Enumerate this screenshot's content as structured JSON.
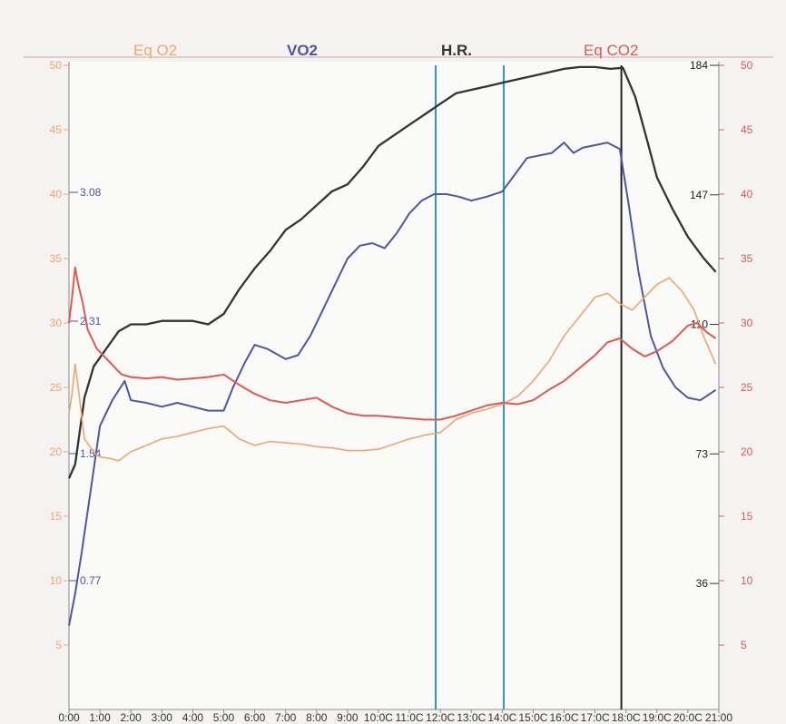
{
  "chart_data": {
    "type": "line",
    "legend": [
      "Eq O2",
      "VO2",
      "H.R.",
      "Eq CO2"
    ],
    "x_ticks": [
      "0:00",
      "1:00",
      "2:00",
      "3:00",
      "4:00",
      "5:00",
      "6:00",
      "7:00",
      "8:00",
      "9:00",
      "10:0C",
      "11:0C",
      "12:0C",
      "13:0C",
      "14:0C",
      "15:0C",
      "16:0C",
      "17:0C",
      "18:0C",
      "19:0C",
      "20:0C",
      "21:00"
    ],
    "x_range_minutes": [
      0,
      21
    ],
    "left_axis_eqo2": {
      "range": [
        0,
        50
      ],
      "ticks": [
        5,
        10,
        15,
        20,
        25,
        30,
        35,
        40,
        45,
        50
      ]
    },
    "left_axis_vo2": {
      "ticks": [
        0.77,
        1.54,
        2.31,
        3.08
      ]
    },
    "right_axis_hr": {
      "range": [
        0,
        184
      ],
      "ticks": [
        36,
        73,
        110,
        147,
        184
      ]
    },
    "right_axis_eqco2": {
      "range": [
        0,
        50
      ],
      "ticks": [
        5,
        10,
        15,
        20,
        25,
        30,
        35,
        40,
        45,
        50
      ]
    },
    "colors": {
      "eq_o2": "#f3a46e",
      "vo2": "#4c56a8",
      "hr": "#333333",
      "eq_co2": "#e2584e",
      "marker_blue": "#3a8fb5",
      "marker_black": "#222222",
      "axis_frame": "#c8a8a8"
    },
    "markers_minutes": [
      {
        "x": 11.85,
        "color": "blue"
      },
      {
        "x": 14.05,
        "color": "blue"
      },
      {
        "x": 17.85,
        "color": "black"
      }
    ],
    "series": [
      {
        "name": "H.R.",
        "axis": "right_hr",
        "x": [
          0,
          0.2,
          0.5,
          0.8,
          1.2,
          1.6,
          2,
          2.5,
          3,
          3.5,
          4,
          4.5,
          5,
          5.5,
          6,
          6.5,
          7,
          7.5,
          8,
          8.5,
          9,
          9.5,
          10,
          10.5,
          11,
          11.5,
          12,
          12.5,
          13,
          13.5,
          14,
          14.5,
          15,
          15.5,
          16,
          16.5,
          17,
          17.5,
          17.9,
          18.3,
          18.7,
          19,
          19.5,
          20,
          20.5,
          20.9
        ],
        "y": [
          66,
          70,
          89,
          98,
          103,
          108,
          110,
          110,
          111,
          111,
          111,
          110,
          113,
          120,
          126,
          131,
          137,
          140,
          144,
          148,
          150,
          155,
          161,
          164,
          167,
          170,
          173,
          176,
          177,
          178,
          179,
          180,
          181,
          182,
          183,
          183.5,
          183.5,
          183,
          183.3,
          175,
          162,
          152,
          143,
          135,
          129,
          125
        ]
      },
      {
        "name": "VO2",
        "axis": "left_eqo2_scale",
        "x": [
          0,
          0.2,
          0.4,
          0.7,
          1,
          1.4,
          1.8,
          2,
          2.5,
          3,
          3.5,
          4,
          4.5,
          5,
          5.3,
          5.7,
          6,
          6.4,
          7,
          7.4,
          7.8,
          8.2,
          8.6,
          9,
          9.4,
          9.8,
          10.2,
          10.6,
          11,
          11.4,
          11.8,
          12.2,
          12.6,
          13,
          13.5,
          14,
          14.4,
          14.8,
          15.2,
          15.6,
          16,
          16.3,
          16.6,
          17,
          17.4,
          17.8,
          18.1,
          18.4,
          18.8,
          19.2,
          19.6,
          20,
          20.4,
          20.9
        ],
        "y": [
          6.5,
          9,
          12,
          17,
          22,
          24,
          25.5,
          24,
          23.8,
          23.5,
          23.8,
          23.5,
          23.2,
          23.2,
          25,
          27,
          28.3,
          28,
          27.2,
          27.5,
          29,
          31,
          33,
          35,
          36,
          36.2,
          35.8,
          37,
          38.5,
          39.5,
          40,
          40,
          39.8,
          39.5,
          39.8,
          40.2,
          41.5,
          42.8,
          43,
          43.2,
          44,
          43.2,
          43.6,
          43.8,
          44,
          43.5,
          39,
          34,
          29,
          26.5,
          25,
          24.2,
          24,
          24.8
        ]
      },
      {
        "name": "Eq O2",
        "axis": "left_eqo2",
        "x": [
          0,
          0.1,
          0.2,
          0.35,
          0.5,
          0.8,
          1,
          1.3,
          1.6,
          2,
          2.5,
          3,
          3.5,
          4,
          4.5,
          5,
          5.5,
          6,
          6.5,
          7,
          7.5,
          8,
          8.5,
          9,
          9.5,
          10,
          10.5,
          11,
          11.5,
          12,
          12.5,
          13,
          13.5,
          14,
          14.5,
          15,
          15.5,
          16,
          16.5,
          17,
          17.4,
          17.8,
          18.2,
          18.6,
          19,
          19.4,
          19.8,
          20.2,
          20.5,
          20.9
        ],
        "y": [
          23,
          24.5,
          26.8,
          24,
          21,
          20,
          19.6,
          19.5,
          19.3,
          20,
          20.5,
          21,
          21.2,
          21.5,
          21.8,
          22,
          21,
          20.5,
          20.8,
          20.7,
          20.6,
          20.4,
          20.3,
          20.1,
          20.1,
          20.2,
          20.6,
          21,
          21.3,
          21.5,
          22.5,
          23,
          23.3,
          23.7,
          24.3,
          25.5,
          27,
          29,
          30.5,
          32,
          32.3,
          31.5,
          31,
          32,
          33,
          33.5,
          32.5,
          31,
          29,
          26.8
        ]
      },
      {
        "name": "Eq CO2",
        "axis": "right_eqco2",
        "x": [
          0,
          0.1,
          0.2,
          0.3,
          0.45,
          0.6,
          0.9,
          1.3,
          1.7,
          2,
          2.5,
          3,
          3.5,
          4,
          4.5,
          5,
          5.5,
          6,
          6.5,
          7,
          7.5,
          8,
          8.5,
          9,
          9.5,
          10,
          10.5,
          11,
          11.5,
          12,
          12.5,
          13,
          13.5,
          14,
          14.5,
          15,
          15.5,
          16,
          16.5,
          17,
          17.4,
          17.8,
          18.2,
          18.6,
          19,
          19.5,
          20,
          20.3,
          20.6,
          20.9
        ],
        "y": [
          30,
          32,
          34.3,
          33,
          31.5,
          29.5,
          28,
          27,
          26,
          25.8,
          25.7,
          25.8,
          25.6,
          25.7,
          25.8,
          26,
          25.2,
          24.5,
          24,
          23.8,
          24,
          24.2,
          23.5,
          23,
          22.8,
          22.8,
          22.7,
          22.6,
          22.5,
          22.5,
          22.8,
          23.2,
          23.6,
          23.8,
          23.7,
          24,
          24.8,
          25.5,
          26.5,
          27.5,
          28.5,
          28.8,
          28,
          27.4,
          27.8,
          28.6,
          29.8,
          30,
          29.3,
          28.8
        ]
      }
    ]
  }
}
